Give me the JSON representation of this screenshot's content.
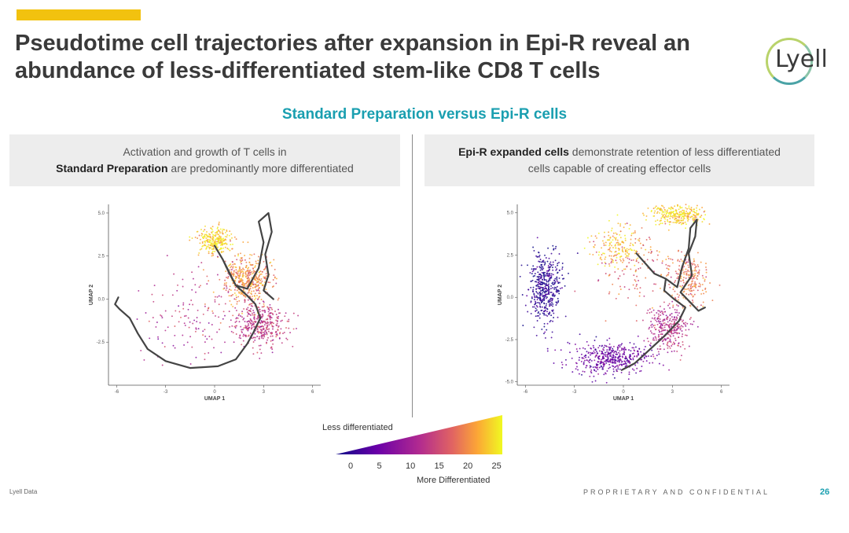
{
  "header": {
    "title": "Pseudotime cell trajectories after expansion in Epi-R reveal an abundance of less-differentiated stem-like CD8 T cells",
    "logo_text": "Lyell"
  },
  "subtitle": "Standard Preparation versus Epi-R cells",
  "left_panel": {
    "line1": "Activation and growth of T cells in",
    "bold": "Standard Preparation",
    "rest": " are predominantly more differentiated"
  },
  "right_panel": {
    "bold": "Epi-R expanded cells",
    "rest": " demonstrate retention of less differentiated",
    "line2": "cells capable of creating effector cells"
  },
  "colors": {
    "accent": "#f2c20f",
    "teal": "#1a9fb0",
    "title_text": "#3a3a3a",
    "panel_bg": "#ededed",
    "scale_low": "#1b0c7d",
    "scale_mid": "#c8407a",
    "scale_high": "#f5e431"
  },
  "chart_data": [
    {
      "type": "scatter",
      "name": "Standard Preparation UMAP",
      "xlabel": "UMAP 1",
      "ylabel": "UMAP 2",
      "xlim": [
        -6.5,
        6.5
      ],
      "ylim": [
        -5,
        5.5
      ],
      "x_ticks": [
        -6,
        -3,
        0,
        3,
        6
      ],
      "y_ticks": [
        5.0,
        2.5,
        0.0,
        -2.5
      ],
      "color_variable": "pseudotime",
      "clusters": [
        {
          "label": "stem-like",
          "center": [
            -5,
            1
          ],
          "spread": [
            0.6,
            1.2
          ],
          "pseudotime": 0,
          "count": 0
        },
        {
          "label": "yellow cluster",
          "center": [
            0,
            3.4
          ],
          "spread": [
            0.9,
            0.7
          ],
          "pseudotime": 25,
          "count": 250
        },
        {
          "label": "orange cluster",
          "center": [
            2,
            1.2
          ],
          "spread": [
            1.4,
            1.3
          ],
          "pseudotime": 21,
          "count": 450
        },
        {
          "label": "pink cluster",
          "center": [
            2.8,
            -1.5
          ],
          "spread": [
            1.4,
            1.1
          ],
          "pseudotime": 15,
          "count": 380
        },
        {
          "label": "sparse cells",
          "center": [
            -1,
            -1
          ],
          "spread": [
            2.8,
            2.4
          ],
          "pseudotime": 14,
          "count": 140
        }
      ],
      "trajectory": [
        [
          -5.9,
          0.1
        ],
        [
          -6.1,
          -0.3
        ],
        [
          -5.8,
          -0.6
        ],
        [
          -5.2,
          -1.1
        ],
        [
          -4.7,
          -2.0
        ],
        [
          -4.1,
          -2.9
        ],
        [
          -3.0,
          -3.6
        ],
        [
          -1.5,
          -4.0
        ],
        [
          0.2,
          -3.9
        ],
        [
          1.3,
          -3.5
        ],
        [
          2.0,
          -2.6
        ],
        [
          2.4,
          -1.9
        ],
        [
          2.8,
          -1.1
        ],
        [
          2.5,
          -0.3
        ],
        [
          2.0,
          0.2
        ],
        [
          1.3,
          0.8
        ],
        [
          0.9,
          1.5
        ],
        [
          0.5,
          2.3
        ],
        [
          0,
          3.1
        ],
        [
          0.5,
          2.3
        ],
        [
          1.3,
          0.8
        ],
        [
          2.0,
          0.6
        ],
        [
          2.7,
          1.8
        ],
        [
          3.0,
          3.3
        ],
        [
          2.7,
          4.5
        ],
        [
          3.3,
          5.0
        ],
        [
          3.5,
          3.9
        ],
        [
          3.1,
          2.6
        ],
        [
          3.3,
          1.4
        ],
        [
          3.0,
          0.5
        ],
        [
          3.6,
          0.0
        ]
      ]
    },
    {
      "type": "scatter",
      "name": "Epi-R expanded UMAP",
      "xlabel": "UMAP 1",
      "ylabel": "UMAP 2",
      "xlim": [
        -6.5,
        6.5
      ],
      "ylim": [
        -5.2,
        5.5
      ],
      "x_ticks": [
        -6,
        -3,
        0,
        3,
        6
      ],
      "y_ticks": [
        5.0,
        2.5,
        0.0,
        -2.5,
        -5.0
      ],
      "color_variable": "pseudotime",
      "clusters": [
        {
          "label": "stem-like dark",
          "center": [
            -4.8,
            0.6
          ],
          "spread": [
            0.9,
            2.0
          ],
          "pseudotime": 2,
          "count": 450
        },
        {
          "label": "purple band",
          "center": [
            -0.8,
            -3.6
          ],
          "spread": [
            2.2,
            0.9
          ],
          "pseudotime": 7,
          "count": 450
        },
        {
          "label": "pink cluster",
          "center": [
            2.7,
            -1.8
          ],
          "spread": [
            1.2,
            1.2
          ],
          "pseudotime": 14,
          "count": 300
        },
        {
          "label": "orange cluster",
          "center": [
            4.0,
            1.1
          ],
          "spread": [
            1.1,
            1.3
          ],
          "pseudotime": 20,
          "count": 220
        },
        {
          "label": "yellow top",
          "center": [
            3.4,
            4.9
          ],
          "spread": [
            1.5,
            0.6
          ],
          "pseudotime": 25,
          "count": 280
        },
        {
          "label": "yellow arc",
          "center": [
            -0.3,
            3.0
          ],
          "spread": [
            1.6,
            1.1
          ],
          "pseudotime": 24,
          "count": 180
        },
        {
          "label": "sparse cells",
          "center": [
            1.0,
            1.5
          ],
          "spread": [
            2.6,
            2.2
          ],
          "pseudotime": 18,
          "count": 120
        }
      ],
      "trajectory": [
        [
          -0.1,
          -4.3
        ],
        [
          0.7,
          -3.9
        ],
        [
          1.6,
          -3.1
        ],
        [
          2.5,
          -2.3
        ],
        [
          3.4,
          -1.4
        ],
        [
          3.8,
          -0.6
        ],
        [
          3.1,
          -0.1
        ],
        [
          2.5,
          0.4
        ],
        [
          2.6,
          1.1
        ],
        [
          1.9,
          1.4
        ],
        [
          0.8,
          2.6
        ],
        [
          1.9,
          1.4
        ],
        [
          2.6,
          1.1
        ],
        [
          3.3,
          0.6
        ],
        [
          3.6,
          1.8
        ],
        [
          4.0,
          2.9
        ],
        [
          4.1,
          4.1
        ],
        [
          4.5,
          4.6
        ],
        [
          4.4,
          3.6
        ],
        [
          4.0,
          2.6
        ],
        [
          4.2,
          1.3
        ],
        [
          3.5,
          0.3
        ],
        [
          4.2,
          -0.4
        ],
        [
          4.6,
          -0.8
        ],
        [
          5.0,
          -0.6
        ]
      ]
    }
  ],
  "colorbar": {
    "less_label": "Less differentiated",
    "more_label": "More Differentiated",
    "ticks": [
      "0",
      "5",
      "10",
      "15",
      "20",
      "25"
    ],
    "range": [
      0,
      27
    ]
  },
  "footer": {
    "left": "Lyell Data",
    "right": "PROPRIETARY AND CONFIDENTIAL",
    "page": "26"
  }
}
